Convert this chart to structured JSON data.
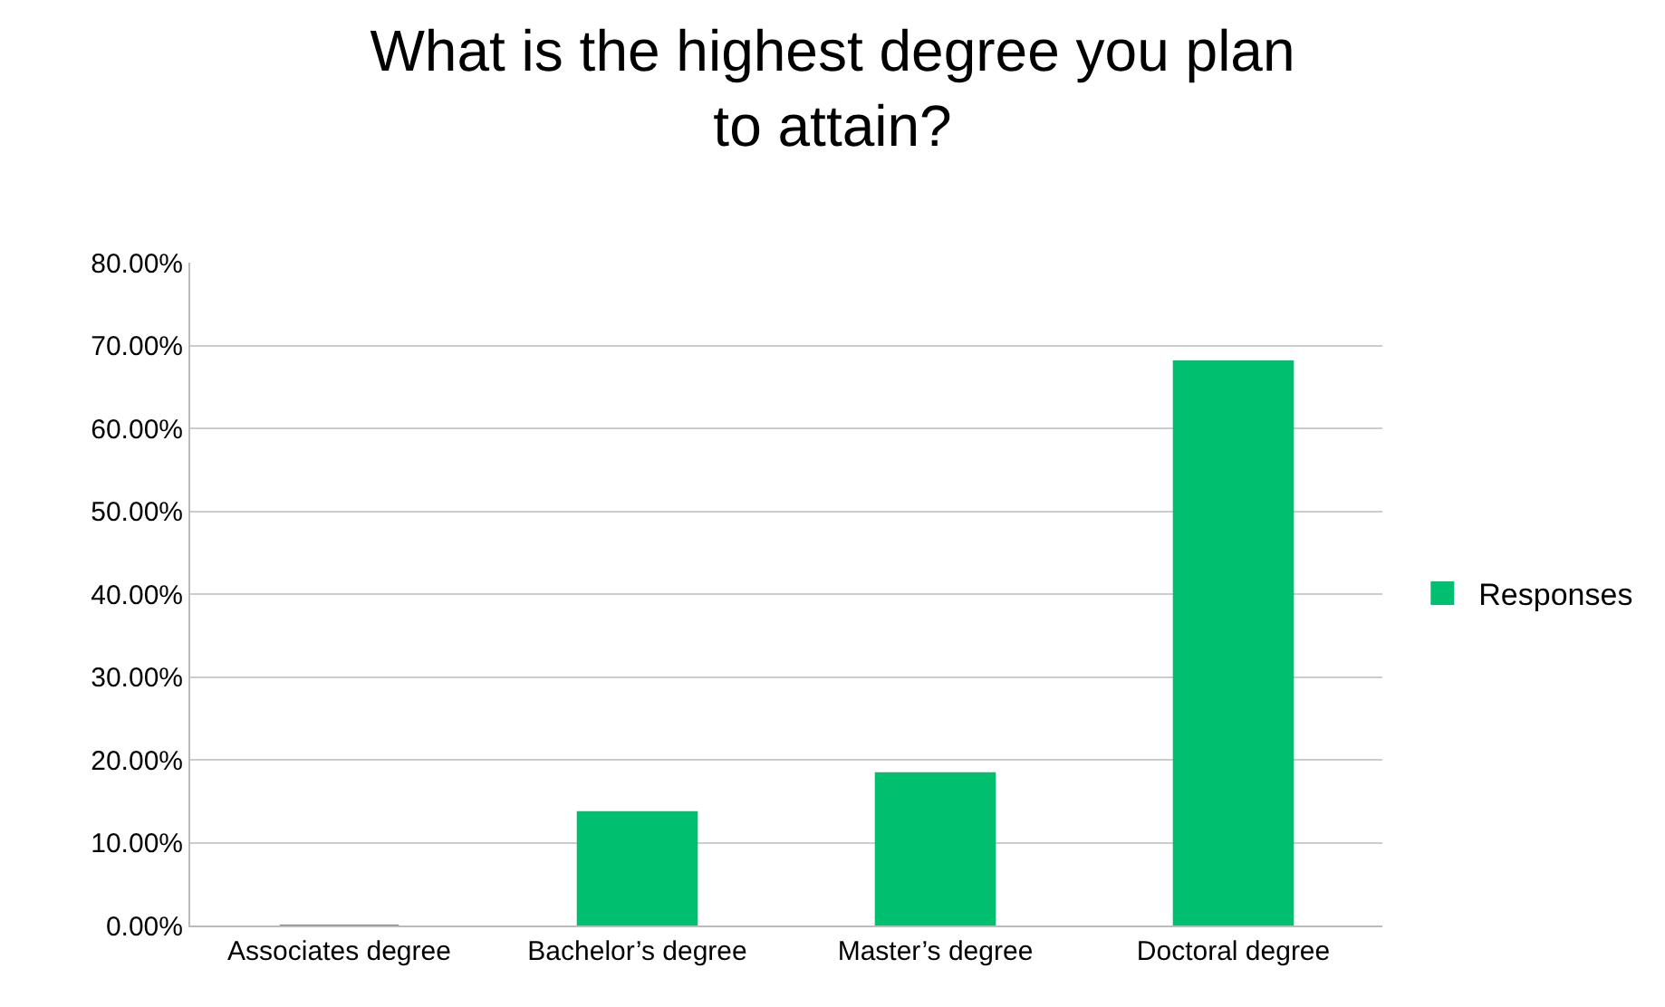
{
  "chart_data": {
    "type": "bar",
    "title": "What is the highest degree you plan to attain?",
    "categories": [
      "Associates degree",
      "Bachelor’s degree",
      "Master’s degree",
      "Doctoral degree"
    ],
    "series": [
      {
        "name": "Responses",
        "color": "#00bf6f",
        "values": [
          0,
          13.7,
          18.4,
          68.1
        ]
      }
    ],
    "ylim": [
      0,
      80
    ],
    "yticks": [
      {
        "value": 0,
        "label": "0.00%"
      },
      {
        "value": 10,
        "label": "10.00%"
      },
      {
        "value": 20,
        "label": "20.00%"
      },
      {
        "value": 30,
        "label": "30.00%"
      },
      {
        "value": 40,
        "label": "40.00%"
      },
      {
        "value": 50,
        "label": "50.00%"
      },
      {
        "value": 60,
        "label": "60.00%"
      },
      {
        "value": 70,
        "label": "70.00%"
      },
      {
        "value": 80,
        "label": "80.00%"
      }
    ],
    "grid": "y",
    "legend": "right"
  }
}
